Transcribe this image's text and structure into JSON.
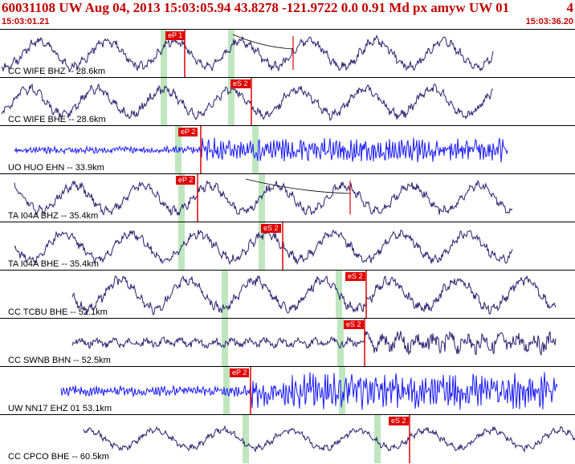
{
  "header": {
    "title": "60031108 UW Aug 04, 2013 15:03:05.94    43.8278 -121.9722  0.0 0.91 Md px amyw UW 01",
    "index": "4",
    "start_time": "15:03:01.21",
    "end_time": "15:03:36.20"
  },
  "colors": {
    "trace_dark": "#2a1f6e",
    "trace_blue": "#1a1aff",
    "pick_flag": "#e00000",
    "window": "#bfe6bf",
    "text_red": "#c00000"
  },
  "traces": [
    {
      "label": "CC WIFE BHZ -- 28.6km",
      "color": "dark",
      "picks": [
        {
          "text": "eP 1"
        }
      ],
      "seed": 1,
      "freq": "low",
      "amp": 1.0
    },
    {
      "label": "CC WIFE BHE -- 28.6km",
      "color": "dark",
      "picks": [
        {
          "text": "eS 2"
        }
      ],
      "seed": 2,
      "freq": "low",
      "amp": 1.0
    },
    {
      "label": "UO HUO EHN -- 33.9km",
      "color": "blue",
      "picks": [
        {
          "text": "eP 2"
        }
      ],
      "seed": 3,
      "freq": "high",
      "amp": 0.4
    },
    {
      "label": "TA I04A BHZ -- 35.4km",
      "color": "dark",
      "picks": [
        {
          "text": "eP 2"
        }
      ],
      "seed": 4,
      "freq": "low",
      "amp": 1.0
    },
    {
      "label": "TA I04A BHE -- 35.4km",
      "color": "dark",
      "picks": [
        {
          "text": "eS 2"
        }
      ],
      "seed": 5,
      "freq": "low",
      "amp": 1.0
    },
    {
      "label": "CC TCBU BHE -- 52.1km",
      "color": "dark",
      "picks": [
        {
          "text": "eS 2"
        }
      ],
      "seed": 6,
      "freq": "low",
      "amp": 1.1
    },
    {
      "label": "CC SWNB BHN -- 52.5km",
      "color": "dark",
      "picks": [
        {
          "text": "eS 2"
        }
      ],
      "seed": 7,
      "freq": "mid",
      "amp": 0.4
    },
    {
      "label": "UW NN17 EHZ 01 53.1km",
      "color": "blue",
      "picks": [
        {
          "text": "eP 2"
        }
      ],
      "seed": 8,
      "freq": "high",
      "amp": 0.6
    },
    {
      "label": "CC CPCO BHE -- 60.5km",
      "color": "dark",
      "picks": [
        {
          "text": "eS 2"
        }
      ],
      "seed": 9,
      "freq": "low",
      "amp": 0.7
    }
  ]
}
